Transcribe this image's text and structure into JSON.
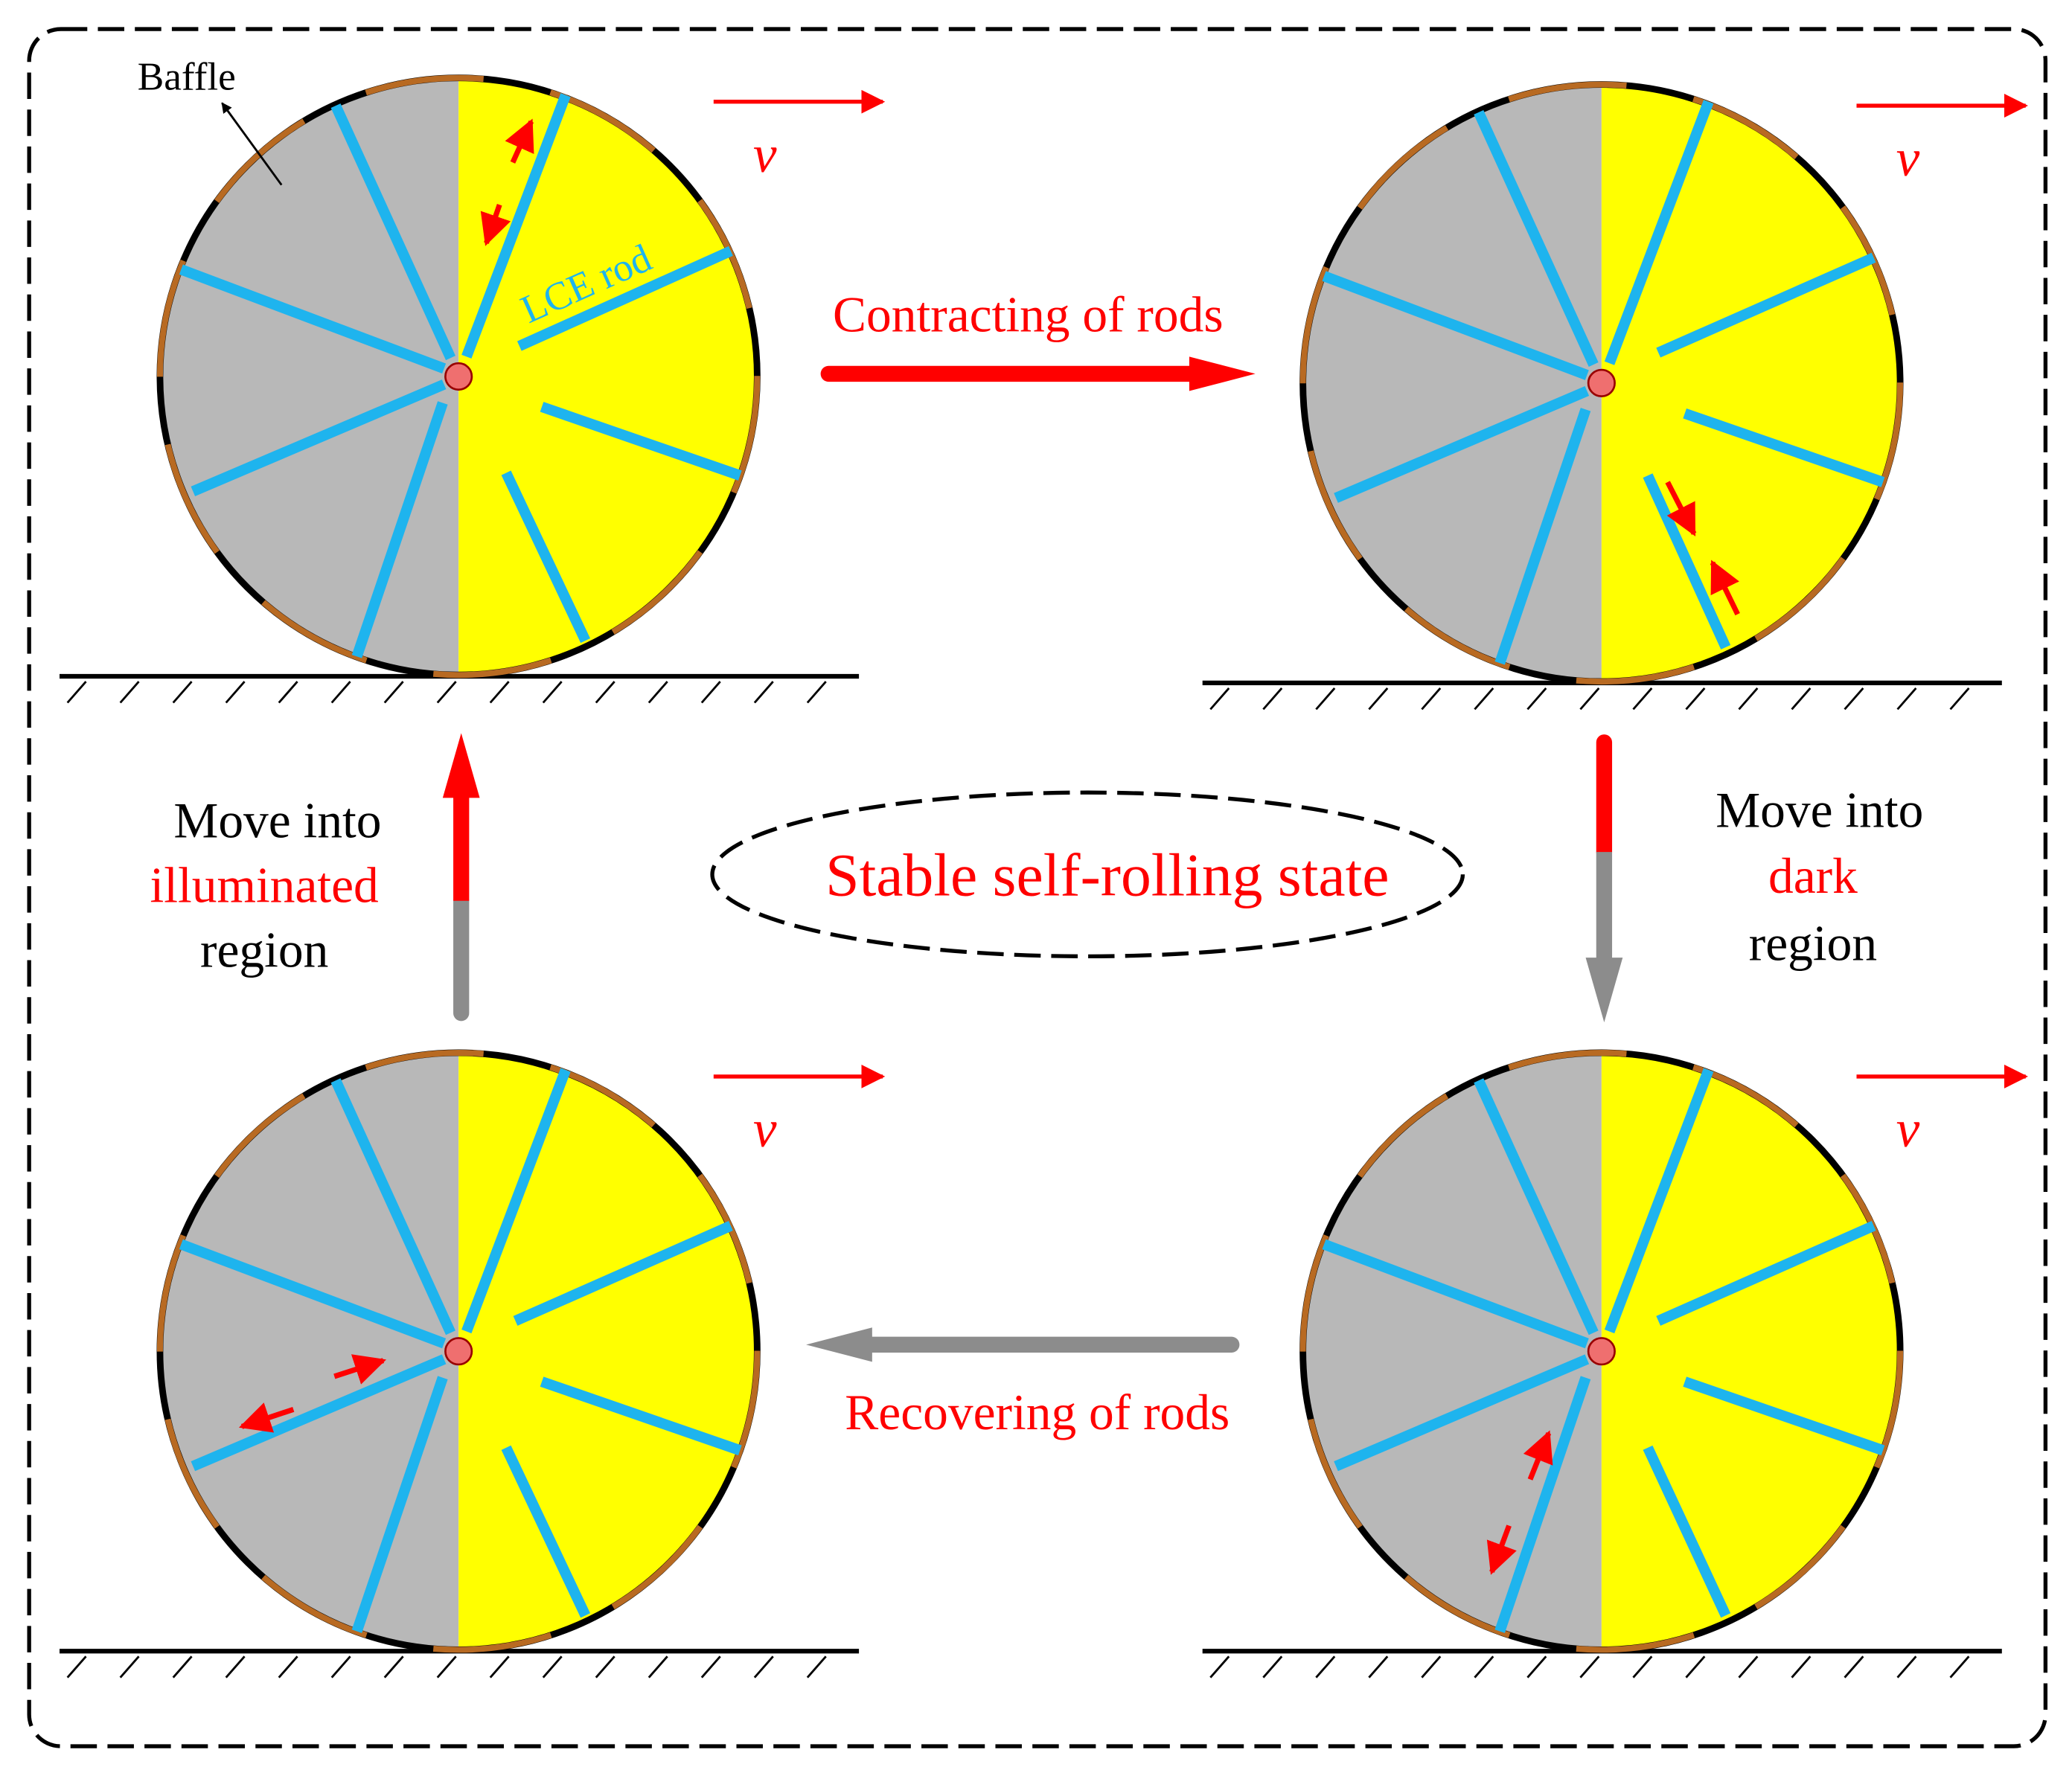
{
  "labels": {
    "baffle": "Baffle",
    "lce_rod": "LCE rod",
    "velocity": "v",
    "contracting": "Contracting of rods",
    "recovering": "Recovering of rods",
    "stable": "Stable self-rolling state",
    "left_move_line1": "Move into",
    "left_move_line2": "illuminated",
    "left_move_line3": "region",
    "right_move_line1": "Move into",
    "right_move_line2": "dark",
    "right_move_line3": "region"
  },
  "colors": {
    "dark_region": "#b8b8b8",
    "illuminated_region": "#ffff00",
    "lce_rod": "#1eb4ee",
    "baffle": "#b86a22",
    "accent": "#ff0000",
    "gray_arrow": "#8c8c8c",
    "hub": "#ef6f6f",
    "outline": "#000000"
  }
}
